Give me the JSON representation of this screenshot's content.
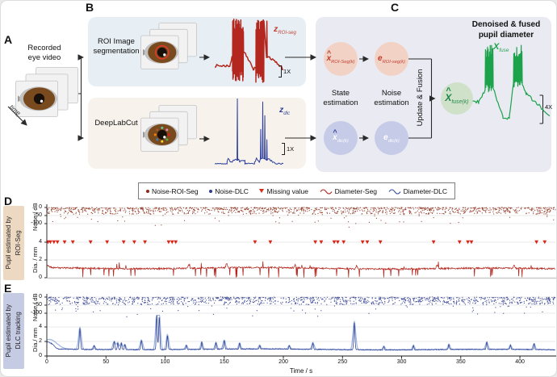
{
  "panelA": {
    "letter": "A",
    "title": "Recorded\neye video",
    "time_label": "time"
  },
  "panelB": {
    "letter": "B",
    "roi_box_label": "ROI Image\nsegmentation",
    "dlc_box_label": "DeepLabCut",
    "roi_trace_label": {
      "base": "z",
      "sub": "ROI-seg",
      "color": "#c0392b"
    },
    "dlc_trace_label": {
      "base": "z",
      "sub": "dlc",
      "color": "#2b3f9b"
    },
    "roi_scale": "1X",
    "dlc_scale": "1X"
  },
  "panelC": {
    "letter": "C",
    "title": "Denoised & fused\npupil diameter",
    "state_label": "State\nestimation",
    "noise_label": "Noise\nestimation",
    "update_label": "Update & Fusion",
    "nodes": [
      {
        "base": "x",
        "hat": true,
        "sub": "ROI-Seg(k)",
        "fill": "#f2d2c5",
        "color": "#c0392b",
        "hat_color": "#b03a2e"
      },
      {
        "base": "e",
        "hat": false,
        "sub": "ROI-seg(k)",
        "fill": "#f2d2c5",
        "color": "#c0392b"
      },
      {
        "base": "x",
        "hat": true,
        "sub": "dlc(k)",
        "fill": "#c6cbe7",
        "color": "#ffffff",
        "hat_color": "#2b3f9b"
      },
      {
        "base": "e",
        "hat": false,
        "sub": "dlc(k)",
        "fill": "#c6cbe7",
        "color": "#ffffff"
      },
      {
        "base": "X",
        "hat": true,
        "sub": "fuse(k)",
        "fill": "#cfe2c9",
        "color": "#1e8449",
        "hat_color": "#1e8449"
      }
    ],
    "fuse_trace_label": {
      "base": "X",
      "sub": "fuse",
      "color": "#1ba24a"
    },
    "fuse_scale": "4X"
  },
  "legend": {
    "items": [
      {
        "label": "Noise-ROI-Seg",
        "marker": "dot",
        "color": "#8e2a19"
      },
      {
        "label": "Noise-DLC",
        "marker": "dot",
        "color": "#2e3d8f"
      },
      {
        "label": "Missing value",
        "marker": "triangle",
        "color": "#d8281a"
      },
      {
        "label": "Diameter-Seg",
        "marker": "wave",
        "color": "#b3271e"
      },
      {
        "label": "Diameter-DLC",
        "marker": "wave",
        "color": "#3a4fa0"
      }
    ]
  },
  "diagram_traces": {
    "roi": {
      "color": "#b3271e",
      "width": 1.5,
      "seed": 7,
      "segments": [
        {
          "type": "noisy",
          "x0": 0,
          "x1": 0.22,
          "y": 0.3,
          "amp": 0.02
        },
        {
          "type": "ramp",
          "x0": 0.22,
          "x1": 0.26,
          "y0": 0.3,
          "y1": 0.45,
          "amp": 0.02
        },
        {
          "type": "burst",
          "x0": 0.26,
          "x1": 0.42,
          "lo": 0.08,
          "hi": 1,
          "n": 30
        },
        {
          "type": "ramp",
          "x0": 0.42,
          "x1": 0.56,
          "y0": 0.5,
          "y1": 0.27,
          "amp": 0.03
        },
        {
          "type": "noisy",
          "x0": 0.56,
          "x1": 0.6,
          "y": 0.26,
          "amp": 0.02
        },
        {
          "type": "burst",
          "x0": 0.6,
          "x1": 0.72,
          "lo": 0.06,
          "hi": 1,
          "n": 24
        },
        {
          "type": "spike",
          "x": 0.76,
          "base": 0.42,
          "top": 0.95
        },
        {
          "type": "ramp",
          "x0": 0.77,
          "x1": 1,
          "y0": 0.44,
          "y1": 0.26,
          "amp": 0.03
        }
      ]
    },
    "dlc": {
      "color": "#2b3f9b",
      "width": 1,
      "seed": 8,
      "segments": [
        {
          "type": "noisy",
          "x0": 0,
          "x1": 0.18,
          "y": 0.05,
          "amp": 0.008
        },
        {
          "type": "noisy",
          "x0": 0.18,
          "x1": 0.3,
          "y": 0.1,
          "amp": 0.03
        },
        {
          "type": "spike",
          "x": 0.33,
          "base": 0.1,
          "top": 1
        },
        {
          "type": "noisy",
          "x0": 0.35,
          "x1": 0.44,
          "y": 0.1,
          "amp": 0.03
        },
        {
          "type": "noisy",
          "x0": 0.44,
          "x1": 0.58,
          "y": 0.05,
          "amp": 0.01
        },
        {
          "type": "noisy",
          "x0": 0.58,
          "x1": 0.65,
          "y": 0.1,
          "amp": 0.035
        },
        {
          "type": "spike",
          "x": 0.67,
          "base": 0.12,
          "top": 0.55
        },
        {
          "type": "spike",
          "x": 0.7,
          "base": 0.13,
          "top": 0.95
        },
        {
          "type": "spike",
          "x": 0.73,
          "base": 0.12,
          "top": 0.75
        },
        {
          "type": "spike",
          "x": 0.76,
          "base": 0.1,
          "top": 0.4
        },
        {
          "type": "ramp",
          "x0": 0.77,
          "x1": 0.9,
          "y0": 0.12,
          "y1": 0.05,
          "amp": 0.015
        },
        {
          "type": "noisy",
          "x0": 0.9,
          "x1": 1,
          "y": 0.05,
          "amp": 0.008
        }
      ]
    },
    "fuse": {
      "color": "#1ba24a",
      "width": 1.2,
      "seed": 9,
      "segments": [
        {
          "type": "noisy",
          "x0": 0,
          "x1": 0.12,
          "y": 0.3,
          "amp": 0.025
        },
        {
          "type": "ramp",
          "x0": 0.12,
          "x1": 0.2,
          "y0": 0.3,
          "y1": 0.44,
          "amp": 0.02
        },
        {
          "type": "burst",
          "x0": 0.2,
          "x1": 0.3,
          "lo": 0.42,
          "hi": 1,
          "n": 12
        },
        {
          "type": "ramp",
          "x0": 0.3,
          "x1": 0.42,
          "y0": 0.46,
          "y1": 0.12,
          "amp": 0.02
        },
        {
          "type": "noisy",
          "x0": 0.42,
          "x1": 0.5,
          "y": 0.1,
          "amp": 0.015
        },
        {
          "type": "ramp",
          "x0": 0.5,
          "x1": 0.55,
          "y0": 0.12,
          "y1": 0.5,
          "amp": 0.03
        },
        {
          "type": "burst",
          "x0": 0.55,
          "x1": 0.66,
          "lo": 0.48,
          "hi": 1,
          "n": 12
        },
        {
          "type": "ramp",
          "x0": 0.66,
          "x1": 0.71,
          "y0": 0.52,
          "y1": 0.4,
          "amp": 0.02
        },
        {
          "type": "ramp",
          "x0": 0.71,
          "x1": 1,
          "y0": 0.4,
          "y1": 0.14,
          "amp": 0.02
        }
      ]
    }
  },
  "chart_data": [
    {
      "id": "D",
      "type": "scatter+line",
      "side_label": "Pupil estimated by\nROI-Seg",
      "noise_axis": {
        "label": "Noise / dB",
        "ticks": [
          0,
          -50,
          -100
        ]
      },
      "dia_axis": {
        "label": "Dia. / mm",
        "ticks": [
          4,
          2,
          0
        ]
      },
      "x_axis": {
        "ticks": [
          0,
          50,
          100,
          150,
          200,
          250,
          300,
          350,
          400
        ],
        "range": [
          0,
          430
        ]
      },
      "noise": {
        "seed": 101,
        "count": 1250,
        "color": "#8e3420",
        "band": 40,
        "pow": 1.8,
        "out_rate": 0.055,
        "out_extra": 80
      },
      "missing_times": [
        1,
        3,
        6,
        9,
        15,
        22,
        37,
        51,
        65,
        74,
        83,
        103,
        106,
        109,
        176,
        189,
        227,
        232,
        243,
        246,
        251,
        267,
        271,
        282,
        327,
        349,
        356,
        359,
        414,
        421
      ],
      "missing_color": "#d8281a",
      "dia": {
        "seed": 202,
        "color": "#b3271e",
        "baseline": 1.05,
        "jitter": 0.09,
        "wander": 0.07,
        "down_rate": 0.035,
        "up_rate": 0.008,
        "spikes": [
          {
            "t": 0,
            "h": 0.3,
            "w": 2
          },
          {
            "t": 120,
            "h": 0.45,
            "w": 0.6
          },
          {
            "t": 152,
            "h": 0.5,
            "w": 0.5
          },
          {
            "t": 210,
            "h": 0.35,
            "w": 0.5
          },
          {
            "t": 262,
            "h": 0.4,
            "w": 0.5
          },
          {
            "t": 330,
            "h": 0.45,
            "w": 0.6
          },
          {
            "t": 395,
            "h": 0.4,
            "w": 0.5
          }
        ]
      }
    },
    {
      "id": "E",
      "type": "scatter+line",
      "side_label": "Pupil estimated by\nDLC tracking",
      "noise_axis": {
        "label": "Noise / dB",
        "ticks": [
          0,
          -50,
          -100
        ]
      },
      "dia_axis": {
        "label": "Dia./ mm",
        "ticks": [
          4,
          2,
          0
        ]
      },
      "x_axis": {
        "label": "Time / s",
        "ticks": [
          0,
          50,
          100,
          150,
          200,
          250,
          300,
          350,
          400
        ],
        "range": [
          0,
          430
        ]
      },
      "noise": {
        "seed": 303,
        "count": 1250,
        "color": "#2f3c8d",
        "band": 45,
        "pow": 1.6,
        "out_rate": 0.05,
        "out_extra": 75
      },
      "missing_times": [],
      "dia": {
        "seed": 404,
        "color": "#2b3f9b",
        "light_color": "#9fb6d9",
        "baseline": 0.9,
        "jitter": 0.06,
        "wander": 0.05,
        "down_rate": 0,
        "up_rate": 0,
        "spikes": [
          {
            "t": 0,
            "h": 1.0,
            "w": 3
          },
          {
            "t": 5,
            "h": 0.4,
            "w": 2
          },
          {
            "t": 28,
            "h": 2.9,
            "w": 0.5
          },
          {
            "t": 40,
            "h": 0.5,
            "w": 0.4
          },
          {
            "t": 57,
            "h": 1.1,
            "w": 0.5
          },
          {
            "t": 60,
            "h": 0.9,
            "w": 0.4
          },
          {
            "t": 63,
            "h": 0.9,
            "w": 0.4
          },
          {
            "t": 66,
            "h": 0.7,
            "w": 0.4
          },
          {
            "t": 80,
            "h": 1.3,
            "w": 0.5
          },
          {
            "t": 93,
            "h": 4.8,
            "w": 0.45
          },
          {
            "t": 95,
            "h": 4.7,
            "w": 0.45
          },
          {
            "t": 102,
            "h": 2.0,
            "w": 0.45
          },
          {
            "t": 118,
            "h": 0.6,
            "w": 0.4
          },
          {
            "t": 131,
            "h": 1.0,
            "w": 0.4
          },
          {
            "t": 143,
            "h": 0.9,
            "w": 0.4
          },
          {
            "t": 150,
            "h": 1.2,
            "w": 0.45
          },
          {
            "t": 163,
            "h": 0.8,
            "w": 0.4
          },
          {
            "t": 180,
            "h": 0.5,
            "w": 0.4
          },
          {
            "t": 205,
            "h": 0.5,
            "w": 0.4
          },
          {
            "t": 225,
            "h": 0.9,
            "w": 0.45
          },
          {
            "t": 260,
            "h": 3.7,
            "w": 0.5
          },
          {
            "t": 285,
            "h": 0.5,
            "w": 0.4
          },
          {
            "t": 310,
            "h": 0.6,
            "w": 0.4
          },
          {
            "t": 340,
            "h": 0.7,
            "w": 0.4
          },
          {
            "t": 372,
            "h": 1.0,
            "w": 0.45
          },
          {
            "t": 392,
            "h": 0.6,
            "w": 0.4
          },
          {
            "t": 412,
            "h": 0.8,
            "w": 0.4
          }
        ]
      }
    }
  ]
}
